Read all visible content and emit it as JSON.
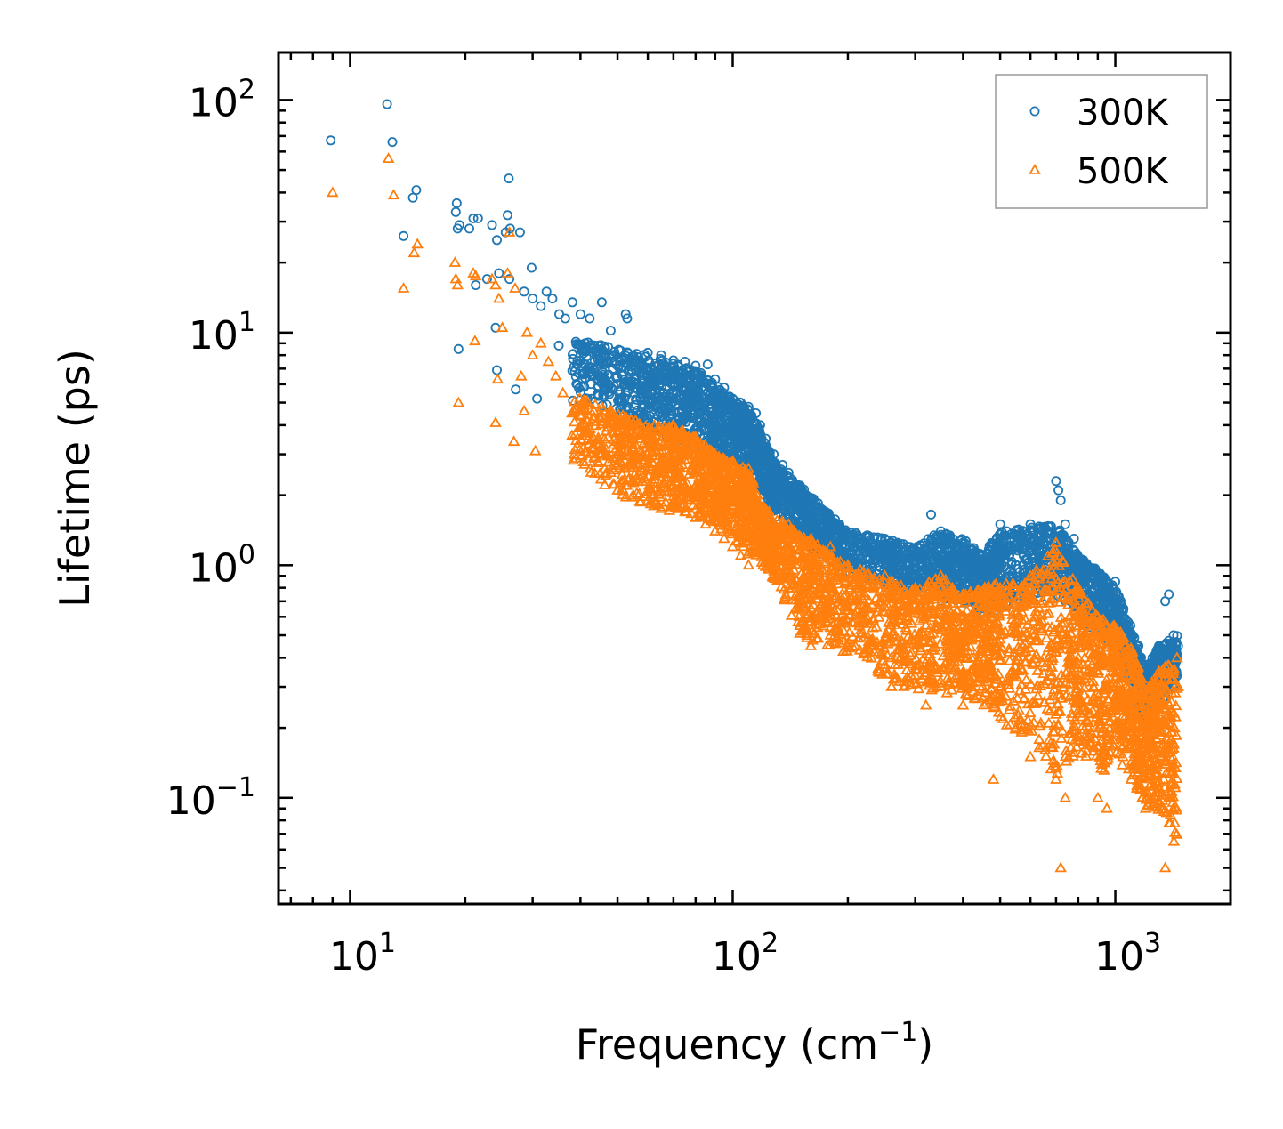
{
  "chart_data": {
    "type": "scatter",
    "xscale": "log",
    "yscale": "log",
    "xlabel": "Frequency (cm",
    "xlabel_sup": "−1",
    "xlabel_end": ")",
    "ylabel": "Lifetime (ps)",
    "xlim": [
      6.5,
      2000
    ],
    "ylim": [
      0.035,
      160
    ],
    "x_ticks": [
      {
        "base": "10",
        "exp": "1"
      },
      {
        "base": "10",
        "exp": "2"
      },
      {
        "base": "10",
        "exp": "3"
      }
    ],
    "y_ticks": [
      {
        "base": "10",
        "exp": "2"
      },
      {
        "base": "10",
        "exp": "1"
      },
      {
        "base": "10",
        "exp": "0"
      },
      {
        "base": "10",
        "exp": "−1"
      }
    ],
    "legend_position": "top-right",
    "series": [
      {
        "name": "300K",
        "marker": "circle",
        "color": "#1f77b4",
        "points": [
          [
            8.9,
            67
          ],
          [
            12.5,
            96
          ],
          [
            12.9,
            66
          ],
          [
            14.6,
            38
          ],
          [
            14.9,
            41
          ],
          [
            13.8,
            26
          ],
          [
            19,
            36
          ],
          [
            18.9,
            33
          ],
          [
            19.1,
            28
          ],
          [
            19.3,
            29
          ],
          [
            20.5,
            28
          ],
          [
            21,
            31
          ],
          [
            21.6,
            31
          ],
          [
            23.5,
            29
          ],
          [
            24.2,
            25
          ],
          [
            25.5,
            27
          ],
          [
            25.8,
            32
          ],
          [
            26,
            46
          ],
          [
            26.2,
            28
          ],
          [
            27.8,
            27
          ],
          [
            21.3,
            16
          ],
          [
            22.8,
            17
          ],
          [
            24.5,
            18
          ],
          [
            26.1,
            17
          ],
          [
            28.5,
            15
          ],
          [
            29.8,
            19
          ],
          [
            30,
            14
          ],
          [
            31.5,
            13
          ],
          [
            32.6,
            15
          ],
          [
            33.8,
            14
          ],
          [
            35.2,
            12
          ],
          [
            36.5,
            11.5
          ],
          [
            38.1,
            13.5
          ],
          [
            40,
            12
          ],
          [
            42.3,
            11.5
          ],
          [
            45.5,
            13.5
          ],
          [
            48,
            10.2
          ],
          [
            52.5,
            12
          ],
          [
            53,
            11.5
          ],
          [
            19.2,
            8.5
          ],
          [
            24,
            10.5
          ],
          [
            24.2,
            6.9
          ],
          [
            27.1,
            5.7
          ],
          [
            30.8,
            5.2
          ],
          [
            35.1,
            8.8
          ],
          [
            38.2,
            5.1
          ],
          [
            45,
            7.5
          ],
          [
            55,
            7.5
          ],
          [
            60,
            8.2
          ],
          [
            65,
            8
          ],
          [
            70,
            7.6
          ],
          [
            75,
            7.5
          ],
          [
            80,
            7.2
          ],
          [
            86,
            7.3
          ],
          [
            90,
            6.3
          ],
          [
            95,
            5.8
          ],
          [
            100,
            5.2
          ],
          [
            105,
            5
          ],
          [
            110,
            4.8
          ],
          [
            115,
            4.5
          ],
          [
            118,
            4
          ],
          [
            122,
            3.5
          ],
          [
            128,
            3
          ],
          [
            135,
            2.7
          ],
          [
            140,
            2.5
          ],
          [
            150,
            2.2
          ],
          [
            160,
            1.9
          ],
          [
            170,
            1.75
          ],
          [
            180,
            1.6
          ],
          [
            190,
            1.5
          ],
          [
            200,
            1.35
          ],
          [
            215,
            1.3
          ],
          [
            230,
            1.25
          ],
          [
            250,
            1.3
          ],
          [
            270,
            1.2
          ],
          [
            290,
            1.15
          ],
          [
            310,
            1.1
          ],
          [
            330,
            1.65
          ],
          [
            350,
            1.4
          ],
          [
            370,
            1.3
          ],
          [
            400,
            1.25
          ],
          [
            430,
            1.05
          ],
          [
            460,
            0.95
          ],
          [
            480,
            1.1
          ],
          [
            500,
            1.5
          ],
          [
            520,
            1.4
          ],
          [
            560,
            1.35
          ],
          [
            600,
            1.5
          ],
          [
            640,
            1.45
          ],
          [
            680,
            1.3
          ],
          [
            700,
            2.3
          ],
          [
            710,
            2.1
          ],
          [
            720,
            1.9
          ],
          [
            740,
            1.5
          ],
          [
            780,
            1.3
          ],
          [
            820,
            1.0
          ],
          [
            860,
            0.95
          ],
          [
            900,
            0.9
          ],
          [
            950,
            0.75
          ],
          [
            1000,
            0.85
          ],
          [
            1050,
            0.65
          ],
          [
            1100,
            0.5
          ],
          [
            1150,
            0.45
          ],
          [
            1200,
            0.3
          ],
          [
            1250,
            0.4
          ],
          [
            1300,
            0.45
          ],
          [
            1350,
            0.7
          ],
          [
            1380,
            0.75
          ],
          [
            1420,
            0.5
          ],
          [
            1460,
            0.45
          ]
        ],
        "band": [
          [
            38,
            9.5,
            5.5
          ],
          [
            50,
            8.5,
            4.5
          ],
          [
            60,
            8,
            3.8
          ],
          [
            70,
            7.5,
            3.5
          ],
          [
            80,
            7,
            3.2
          ],
          [
            90,
            6,
            3
          ],
          [
            100,
            5.2,
            2.8
          ],
          [
            110,
            4.8,
            2.5
          ],
          [
            120,
            3.5,
            2
          ],
          [
            130,
            2.7,
            1.6
          ],
          [
            150,
            2.2,
            1.3
          ],
          [
            170,
            1.8,
            1.1
          ],
          [
            200,
            1.4,
            0.9
          ],
          [
            250,
            1.3,
            0.8
          ],
          [
            300,
            1.2,
            0.75
          ],
          [
            350,
            1.4,
            0.7
          ],
          [
            400,
            1.3,
            0.7
          ],
          [
            450,
            1.1,
            0.6
          ],
          [
            500,
            1.4,
            0.65
          ],
          [
            600,
            1.45,
            0.7
          ],
          [
            700,
            1.5,
            0.75
          ],
          [
            800,
            1.1,
            0.6
          ],
          [
            900,
            0.95,
            0.5
          ],
          [
            1000,
            0.8,
            0.45
          ],
          [
            1100,
            0.55,
            0.3
          ],
          [
            1200,
            0.35,
            0.2
          ],
          [
            1300,
            0.45,
            0.25
          ],
          [
            1450,
            0.5,
            0.3
          ]
        ]
      },
      {
        "name": "500K",
        "marker": "triangle",
        "color": "#ff7f0e",
        "points": [
          [
            9,
            40
          ],
          [
            12.6,
            56
          ],
          [
            13,
            39
          ],
          [
            13.8,
            15.5
          ],
          [
            14.7,
            22
          ],
          [
            15,
            24
          ],
          [
            18.8,
            20
          ],
          [
            18.9,
            17
          ],
          [
            19.1,
            16
          ],
          [
            19.2,
            5
          ],
          [
            21,
            18
          ],
          [
            21.3,
            17.5
          ],
          [
            21.2,
            9.2
          ],
          [
            23.5,
            17
          ],
          [
            24,
            16
          ],
          [
            24.5,
            14
          ],
          [
            25,
            10.5
          ],
          [
            25.8,
            18
          ],
          [
            26.1,
            27
          ],
          [
            27,
            15.5
          ],
          [
            24,
            4.1
          ],
          [
            24.3,
            6.3
          ],
          [
            26.8,
            3.4
          ],
          [
            28,
            6.5
          ],
          [
            28.5,
            4.6
          ],
          [
            30.5,
            3.1
          ],
          [
            29,
            10
          ],
          [
            30,
            8
          ],
          [
            31.5,
            9
          ],
          [
            33,
            7.5
          ],
          [
            34.5,
            6.5
          ],
          [
            36,
            5.5
          ],
          [
            38,
            4.5
          ],
          [
            40,
            4
          ],
          [
            42,
            3.5
          ],
          [
            45,
            3
          ],
          [
            48,
            2.5
          ],
          [
            50,
            2.1
          ],
          [
            55,
            2
          ],
          [
            60,
            1.9
          ],
          [
            65,
            1.75
          ],
          [
            70,
            1.8
          ],
          [
            75,
            1.7
          ],
          [
            80,
            1.6
          ],
          [
            85,
            1.5
          ],
          [
            90,
            1.4
          ],
          [
            95,
            1.3
          ],
          [
            100,
            1.2
          ],
          [
            105,
            1.1
          ],
          [
            110,
            1.0
          ],
          [
            120,
            1.0
          ],
          [
            130,
            0.9
          ],
          [
            140,
            0.8
          ],
          [
            150,
            0.55
          ],
          [
            160,
            0.45
          ],
          [
            180,
            0.5
          ],
          [
            200,
            0.45
          ],
          [
            220,
            0.42
          ],
          [
            240,
            0.35
          ],
          [
            260,
            0.3
          ],
          [
            280,
            0.3
          ],
          [
            320,
            0.25
          ],
          [
            350,
            0.3
          ],
          [
            400,
            0.25
          ],
          [
            450,
            0.3
          ],
          [
            480,
            0.12
          ],
          [
            500,
            0.3
          ],
          [
            550,
            0.2
          ],
          [
            600,
            0.15
          ],
          [
            650,
            0.4
          ],
          [
            700,
            0.12
          ],
          [
            720,
            0.05
          ],
          [
            740,
            0.1
          ],
          [
            800,
            0.4
          ],
          [
            850,
            0.2
          ],
          [
            900,
            0.1
          ],
          [
            950,
            0.09
          ],
          [
            1000,
            0.3
          ],
          [
            1050,
            0.2
          ],
          [
            1100,
            0.12
          ],
          [
            1150,
            0.15
          ],
          [
            1200,
            0.09
          ],
          [
            1300,
            0.25
          ],
          [
            1350,
            0.05
          ],
          [
            1400,
            0.1
          ],
          [
            1460,
            0.3
          ],
          [
            60,
            3.8
          ],
          [
            70,
            4
          ],
          [
            80,
            3.5
          ],
          [
            90,
            3
          ],
          [
            100,
            2.8
          ],
          [
            110,
            2.6
          ],
          [
            120,
            1.8
          ],
          [
            140,
            1.5
          ],
          [
            160,
            1.3
          ],
          [
            180,
            1.2
          ],
          [
            200,
            1.0
          ],
          [
            250,
            0.9
          ],
          [
            300,
            0.8
          ],
          [
            350,
            0.9
          ],
          [
            400,
            0.75
          ],
          [
            500,
            0.8
          ],
          [
            600,
            0.9
          ],
          [
            700,
            1.25
          ],
          [
            710,
            1.1
          ],
          [
            800,
            0.8
          ],
          [
            900,
            0.6
          ],
          [
            1000,
            0.5
          ],
          [
            1100,
            0.4
          ],
          [
            1300,
            0.35
          ],
          [
            1450,
            0.4
          ]
        ],
        "band": [
          [
            38,
            5.5,
            2.8
          ],
          [
            50,
            4.5,
            2
          ],
          [
            60,
            4,
            1.8
          ],
          [
            70,
            4,
            1.7
          ],
          [
            80,
            3.6,
            1.6
          ],
          [
            90,
            3,
            1.5
          ],
          [
            100,
            2.8,
            1.3
          ],
          [
            110,
            2.6,
            1.1
          ],
          [
            120,
            1.8,
            1.0
          ],
          [
            130,
            1.6,
            0.85
          ],
          [
            150,
            1.4,
            0.5
          ],
          [
            170,
            1.2,
            0.45
          ],
          [
            200,
            1.0,
            0.42
          ],
          [
            250,
            0.9,
            0.33
          ],
          [
            300,
            0.8,
            0.28
          ],
          [
            350,
            0.9,
            0.28
          ],
          [
            400,
            0.75,
            0.28
          ],
          [
            450,
            0.8,
            0.25
          ],
          [
            500,
            0.85,
            0.2
          ],
          [
            600,
            0.9,
            0.18
          ],
          [
            700,
            1.2,
            0.12
          ],
          [
            800,
            0.8,
            0.15
          ],
          [
            900,
            0.6,
            0.12
          ],
          [
            1000,
            0.55,
            0.15
          ],
          [
            1100,
            0.45,
            0.12
          ],
          [
            1200,
            0.3,
            0.09
          ],
          [
            1300,
            0.35,
            0.08
          ],
          [
            1450,
            0.4,
            0.06
          ]
        ]
      }
    ]
  }
}
